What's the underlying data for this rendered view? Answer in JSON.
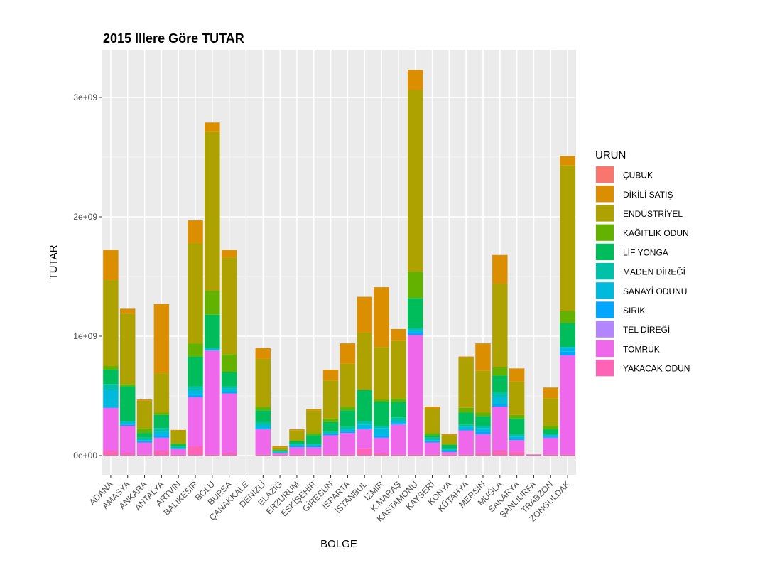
{
  "chart_data": {
    "type": "bar",
    "stacked": true,
    "title": "2015 Illere Göre TUTAR",
    "xlabel": "BOLGE",
    "ylabel": "TUTAR",
    "ylim": [
      0,
      3300000000
    ],
    "yticks": [
      0,
      1000000000,
      2000000000,
      3000000000
    ],
    "ytick_labels": [
      "0e+00",
      "1e+09",
      "2e+09",
      "3e+09"
    ],
    "grid": true,
    "background": "#ebebeb",
    "legend_title": "URUN",
    "legend_position": "right",
    "categories": [
      "ADANA",
      "AMASYA",
      "ANKARA",
      "ANTALYA",
      "ARTVİN",
      "BALIKESİR",
      "BOLU",
      "BURSA",
      "ÇANAKKALE",
      "DENİZLİ",
      "ELAZIĞ",
      "ERZURUM",
      "ESKİŞEHİR",
      "GİRESUN",
      "ISPARTA",
      "İSTANBUL",
      "İZMİR",
      "K.MARAŞ",
      "KASTAMONU",
      "KAYSERİ",
      "KONYA",
      "KÜTAHYA",
      "MERSİN",
      "MUĞLA",
      "SAKARYA",
      "ŞANLIURFA",
      "TRABZON",
      "ZONGULDAK"
    ],
    "series": [
      {
        "name": "ÇUBUK",
        "color": "#F8766D",
        "values": [
          0,
          0,
          0,
          0,
          0,
          0,
          0,
          0,
          0,
          0,
          0,
          0,
          0,
          0,
          0,
          0,
          0,
          0,
          0,
          0,
          0,
          0,
          0,
          0,
          0,
          0,
          0,
          0
        ]
      },
      {
        "name": "DİKİLİ SATIŞ",
        "color": "#DB8E00",
        "values": [
          250000000,
          40000000,
          10000000,
          580000000,
          10000000,
          190000000,
          80000000,
          60000000,
          0,
          90000000,
          10000000,
          10000000,
          10000000,
          90000000,
          170000000,
          300000000,
          500000000,
          100000000,
          170000000,
          20000000,
          10000000,
          10000000,
          230000000,
          240000000,
          110000000,
          0,
          90000000,
          80000000
        ]
      },
      {
        "name": "ENDÜSTRİYEL",
        "color": "#AEA200",
        "values": [
          720000000,
          590000000,
          230000000,
          330000000,
          100000000,
          840000000,
          1330000000,
          810000000,
          0,
          400000000,
          20000000,
          80000000,
          190000000,
          320000000,
          360000000,
          480000000,
          440000000,
          480000000,
          1520000000,
          200000000,
          70000000,
          420000000,
          350000000,
          700000000,
          280000000,
          0,
          230000000,
          1220000000
        ]
      },
      {
        "name": "KAĞITLIK ODUN",
        "color": "#64B200",
        "values": [
          30000000,
          20000000,
          40000000,
          20000000,
          10000000,
          110000000,
          200000000,
          150000000,
          0,
          30000000,
          5000000,
          10000000,
          20000000,
          30000000,
          30000000,
          0,
          20000000,
          30000000,
          220000000,
          20000000,
          10000000,
          40000000,
          30000000,
          70000000,
          30000000,
          0,
          30000000,
          100000000
        ]
      },
      {
        "name": "LİF YONGA",
        "color": "#00BD5C",
        "values": [
          120000000,
          290000000,
          40000000,
          110000000,
          20000000,
          250000000,
          280000000,
          120000000,
          0,
          100000000,
          10000000,
          20000000,
          70000000,
          80000000,
          140000000,
          260000000,
          200000000,
          130000000,
          250000000,
          20000000,
          30000000,
          100000000,
          80000000,
          140000000,
          130000000,
          0,
          40000000,
          200000000
        ]
      },
      {
        "name": "MADEN DİREĞİ",
        "color": "#00C1A7",
        "values": [
          50000000,
          10000000,
          20000000,
          30000000,
          10000000,
          30000000,
          0,
          20000000,
          0,
          30000000,
          5000000,
          10000000,
          10000000,
          10000000,
          20000000,
          30000000,
          20000000,
          30000000,
          20000000,
          20000000,
          10000000,
          20000000,
          20000000,
          40000000,
          20000000,
          0,
          10000000,
          0
        ]
      },
      {
        "name": "SANAYİ ODUNU",
        "color": "#00BADE",
        "values": [
          140000000,
          20000000,
          10000000,
          30000000,
          5000000,
          40000000,
          20000000,
          30000000,
          0,
          20000000,
          5000000,
          10000000,
          10000000,
          10000000,
          20000000,
          30000000,
          60000000,
          20000000,
          20000000,
          10000000,
          10000000,
          20000000,
          30000000,
          60000000,
          20000000,
          0,
          10000000,
          40000000
        ]
      },
      {
        "name": "SIRIK",
        "color": "#00A6FF",
        "values": [
          10000000,
          10000000,
          10000000,
          20000000,
          5000000,
          20000000,
          0,
          10000000,
          0,
          10000000,
          5000000,
          10000000,
          10000000,
          10000000,
          10000000,
          10000000,
          20000000,
          10000000,
          20000000,
          10000000,
          10000000,
          10000000,
          20000000,
          20000000,
          10000000,
          0,
          10000000,
          30000000
        ]
      },
      {
        "name": "TEL DİREĞİ",
        "color": "#B385FF",
        "values": [
          0,
          0,
          0,
          0,
          0,
          0,
          0,
          0,
          0,
          0,
          0,
          0,
          0,
          0,
          0,
          0,
          0,
          0,
          0,
          0,
          0,
          0,
          0,
          0,
          0,
          0,
          0,
          0
        ]
      },
      {
        "name": "TOMRUK",
        "color": "#EF67EB",
        "values": [
          360000000,
          230000000,
          100000000,
          110000000,
          45000000,
          410000000,
          870000000,
          500000000,
          0,
          210000000,
          10000000,
          60000000,
          60000000,
          160000000,
          180000000,
          160000000,
          130000000,
          250000000,
          1000000000,
          100000000,
          20000000,
          200000000,
          160000000,
          370000000,
          100000000,
          0,
          140000000,
          830000000
        ]
      },
      {
        "name": "YAKACAK ODUN",
        "color": "#FF63B6",
        "values": [
          40000000,
          20000000,
          10000000,
          40000000,
          10000000,
          80000000,
          10000000,
          20000000,
          0,
          10000000,
          10000000,
          10000000,
          10000000,
          10000000,
          10000000,
          60000000,
          20000000,
          10000000,
          10000000,
          10000000,
          10000000,
          10000000,
          20000000,
          40000000,
          30000000,
          10000000,
          10000000,
          10000000
        ]
      }
    ]
  }
}
